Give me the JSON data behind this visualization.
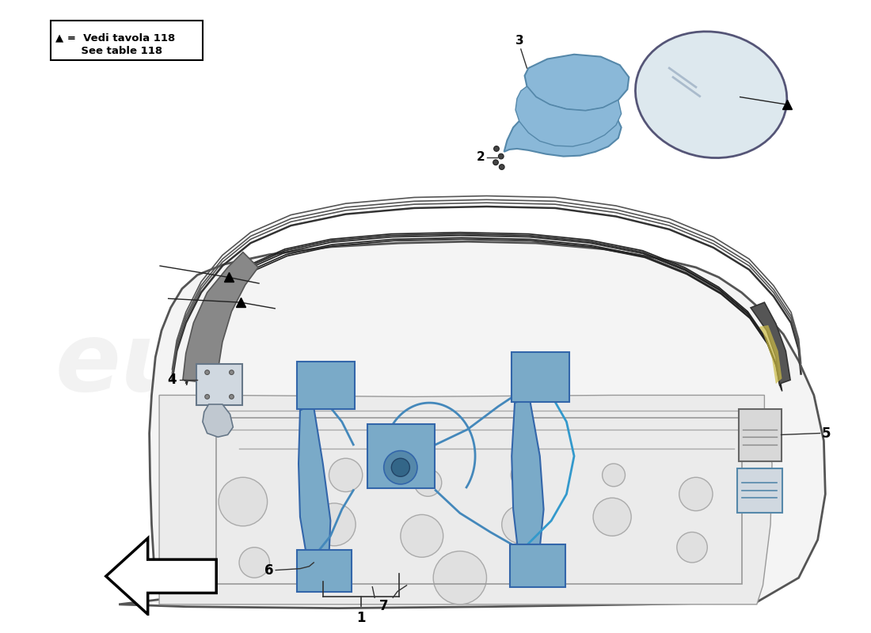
{
  "background_color": "#ffffff",
  "legend_line1": "▲ =  Vedi tavola 118",
  "legend_line2": "       See table 118",
  "mirror_fill": "#8ab8d8",
  "mirror_edge": "#5588aa",
  "mirror_glass_fill": "#dde8ee",
  "mechanism_fill": "#7aaac8",
  "mechanism_edge": "#3366aa",
  "door_fill": "#f4f4f4",
  "door_edge": "#555555",
  "inner_fill": "#ebebeb",
  "seal_fill": "#333333",
  "label_fontsize": 11,
  "annotation_color": "#222222"
}
